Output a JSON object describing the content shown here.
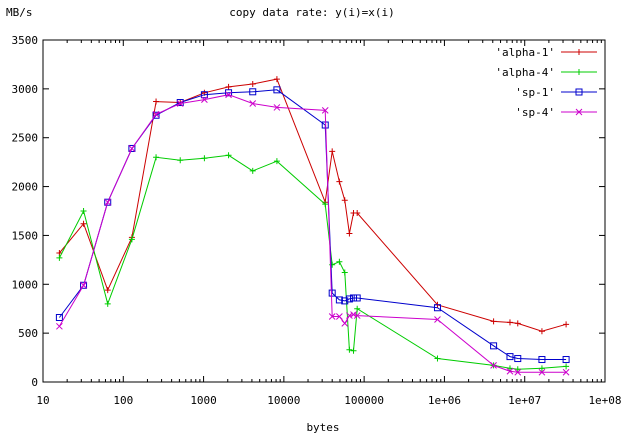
{
  "chart_data": {
    "type": "line",
    "title": "copy data rate: y(i)=x(i)",
    "xlabel": "bytes",
    "ylabel": "MB/s",
    "x_scale": "log",
    "xlim": [
      10,
      100000000
    ],
    "ylim": [
      0,
      3500
    ],
    "grid": false,
    "legend_position": "top-right",
    "x_ticks": [
      {
        "value": 10,
        "label": "10"
      },
      {
        "value": 100,
        "label": "100"
      },
      {
        "value": 1000,
        "label": "1000"
      },
      {
        "value": 10000,
        "label": "10000"
      },
      {
        "value": 100000,
        "label": "100000"
      },
      {
        "value": 1000000,
        "label": "1e+06"
      },
      {
        "value": 10000000,
        "label": "1e+07"
      },
      {
        "value": 100000000,
        "label": "1e+08"
      }
    ],
    "y_ticks": [
      0,
      500,
      1000,
      1500,
      2000,
      2500,
      3000,
      3500
    ],
    "series": [
      {
        "name": "'alpha-1'",
        "color": "#cc0000",
        "marker": "plus",
        "points": [
          [
            16,
            1320
          ],
          [
            32,
            1620
          ],
          [
            64,
            940
          ],
          [
            128,
            1480
          ],
          [
            256,
            2870
          ],
          [
            512,
            2860
          ],
          [
            1024,
            2960
          ],
          [
            2048,
            3020
          ],
          [
            4096,
            3050
          ],
          [
            8192,
            3100
          ],
          [
            32768,
            1840
          ],
          [
            40000,
            2360
          ],
          [
            49152,
            2050
          ],
          [
            57344,
            1860
          ],
          [
            65536,
            1520
          ],
          [
            73728,
            1730
          ],
          [
            81920,
            1730
          ],
          [
            819200,
            790
          ],
          [
            4096000,
            620
          ],
          [
            6553600,
            610
          ],
          [
            8192000,
            600
          ],
          [
            16384000,
            520
          ],
          [
            32768000,
            590
          ]
        ]
      },
      {
        "name": "'alpha-4'",
        "color": "#00cc00",
        "marker": "plus",
        "points": [
          [
            16,
            1270
          ],
          [
            32,
            1750
          ],
          [
            64,
            800
          ],
          [
            128,
            1460
          ],
          [
            256,
            2300
          ],
          [
            512,
            2270
          ],
          [
            1024,
            2290
          ],
          [
            2048,
            2320
          ],
          [
            4096,
            2160
          ],
          [
            8192,
            2260
          ],
          [
            32768,
            1820
          ],
          [
            40000,
            1200
          ],
          [
            49152,
            1230
          ],
          [
            57344,
            1120
          ],
          [
            65536,
            330
          ],
          [
            73728,
            320
          ],
          [
            81920,
            750
          ],
          [
            819200,
            240
          ],
          [
            4096000,
            170
          ],
          [
            6553600,
            140
          ],
          [
            8192000,
            130
          ],
          [
            16384000,
            140
          ],
          [
            32768000,
            160
          ]
        ]
      },
      {
        "name": "'sp-1'",
        "color": "#0000cc",
        "marker": "square",
        "points": [
          [
            16,
            660
          ],
          [
            32,
            990
          ],
          [
            64,
            1840
          ],
          [
            128,
            2390
          ],
          [
            256,
            2730
          ],
          [
            512,
            2860
          ],
          [
            1024,
            2940
          ],
          [
            2048,
            2960
          ],
          [
            4096,
            2970
          ],
          [
            8192,
            2990
          ],
          [
            32768,
            2630
          ],
          [
            40000,
            910
          ],
          [
            49152,
            840
          ],
          [
            57344,
            830
          ],
          [
            65536,
            850
          ],
          [
            73728,
            860
          ],
          [
            81920,
            860
          ],
          [
            819200,
            760
          ],
          [
            4096000,
            370
          ],
          [
            6553600,
            260
          ],
          [
            8192000,
            240
          ],
          [
            16384000,
            230
          ],
          [
            32768000,
            230
          ]
        ]
      },
      {
        "name": "'sp-4'",
        "color": "#cc00cc",
        "marker": "cross",
        "points": [
          [
            16,
            570
          ],
          [
            32,
            990
          ],
          [
            64,
            1840
          ],
          [
            128,
            2390
          ],
          [
            256,
            2740
          ],
          [
            512,
            2850
          ],
          [
            1024,
            2890
          ],
          [
            2048,
            2940
          ],
          [
            4096,
            2850
          ],
          [
            8192,
            2810
          ],
          [
            32768,
            2780
          ],
          [
            40000,
            670
          ],
          [
            49152,
            670
          ],
          [
            57344,
            600
          ],
          [
            65536,
            680
          ],
          [
            73728,
            690
          ],
          [
            81920,
            680
          ],
          [
            819200,
            640
          ],
          [
            4096000,
            170
          ],
          [
            6553600,
            110
          ],
          [
            8192000,
            100
          ],
          [
            16384000,
            100
          ],
          [
            32768000,
            100
          ]
        ]
      }
    ]
  }
}
